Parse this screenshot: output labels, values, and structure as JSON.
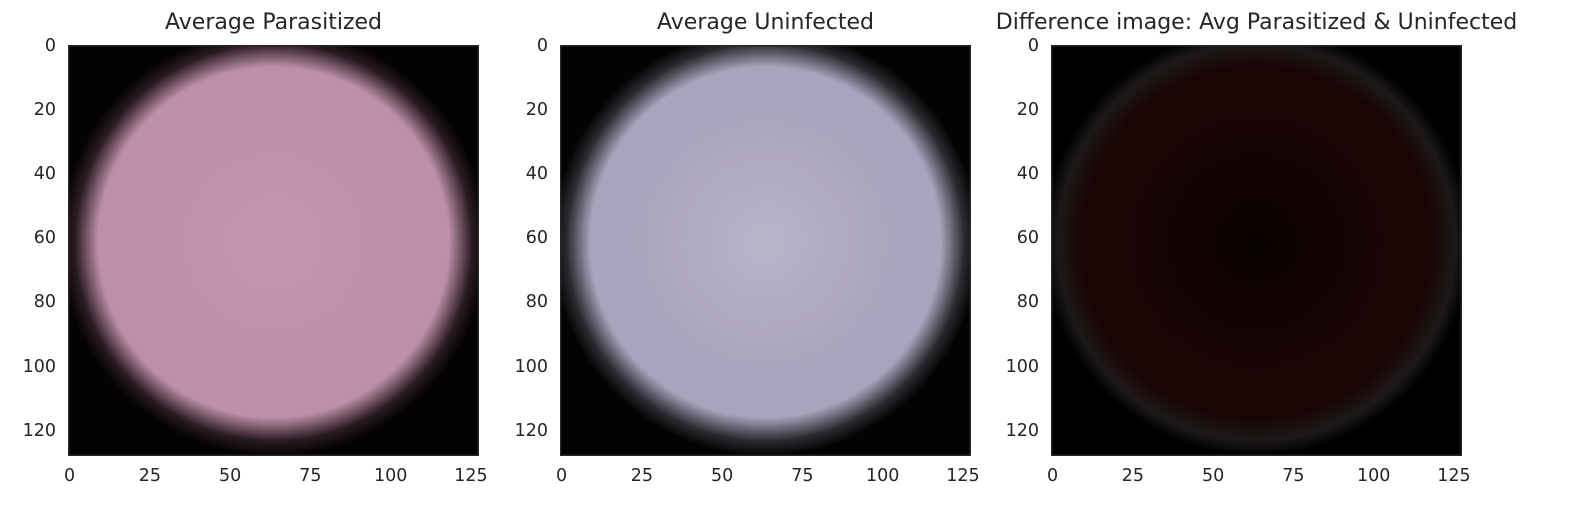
{
  "chart_data": [
    {
      "type": "heatmap",
      "title": "Average Parasitized",
      "xlabel": "",
      "ylabel": "",
      "xlim": [
        0,
        128
      ],
      "ylim": [
        128,
        0
      ],
      "x_ticks": [
        "0",
        "25",
        "50",
        "75",
        "100",
        "125"
      ],
      "y_ticks": [
        "0",
        "20",
        "40",
        "60",
        "80",
        "100",
        "120"
      ],
      "grid": false,
      "colors": {
        "center": "#c596b0",
        "mid": "#bd8fa9",
        "edge": "#2a1b22",
        "background": "#050203"
      }
    },
    {
      "type": "heatmap",
      "title": "Average Uninfected",
      "xlabel": "",
      "ylabel": "",
      "xlim": [
        0,
        128
      ],
      "ylim": [
        128,
        0
      ],
      "x_ticks": [
        "0",
        "25",
        "50",
        "75",
        "100",
        "125"
      ],
      "y_ticks": [
        "0",
        "20",
        "40",
        "60",
        "80",
        "100",
        "120"
      ],
      "grid": false,
      "colors": {
        "center": "#b9b4c8",
        "mid": "#aaa3bd",
        "edge": "#2b2a30",
        "background": "#030303"
      }
    },
    {
      "type": "heatmap",
      "title": "Difference image: Avg Parasitized & Uninfected",
      "xlabel": "",
      "ylabel": "",
      "xlim": [
        0,
        128
      ],
      "ylim": [
        128,
        0
      ],
      "x_ticks": [
        "0",
        "25",
        "50",
        "75",
        "100",
        "125"
      ],
      "y_ticks": [
        "0",
        "20",
        "40",
        "60",
        "80",
        "100",
        "120"
      ],
      "grid": false,
      "colors": {
        "center": "#0a0000",
        "mid": "#1a0505",
        "edge": "#1c1818",
        "background": "#000000"
      }
    }
  ]
}
